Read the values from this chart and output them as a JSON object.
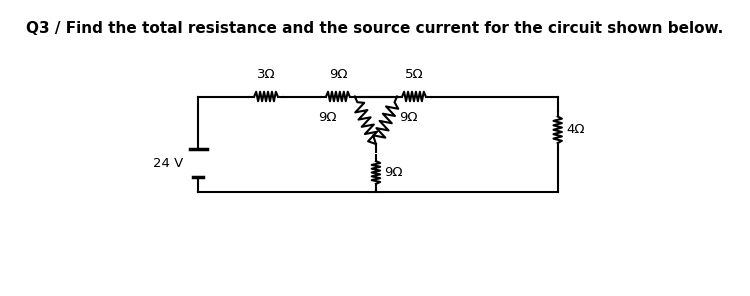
{
  "title": "Q3 / Find the total resistance and the source current for the circuit shown below.",
  "title_fontsize": 11,
  "bg_color": "#ffffff",
  "line_color": "#000000",
  "resistor_labels": {
    "R_top_left": "3Ω",
    "R_top_mid": "9Ω",
    "R_top_right": "5Ω",
    "R_mid_left": "9Ω",
    "R_mid_right": "9Ω",
    "R_bottom_mid": "9Ω",
    "R_right": "4Ω"
  },
  "source_label": "24 V"
}
